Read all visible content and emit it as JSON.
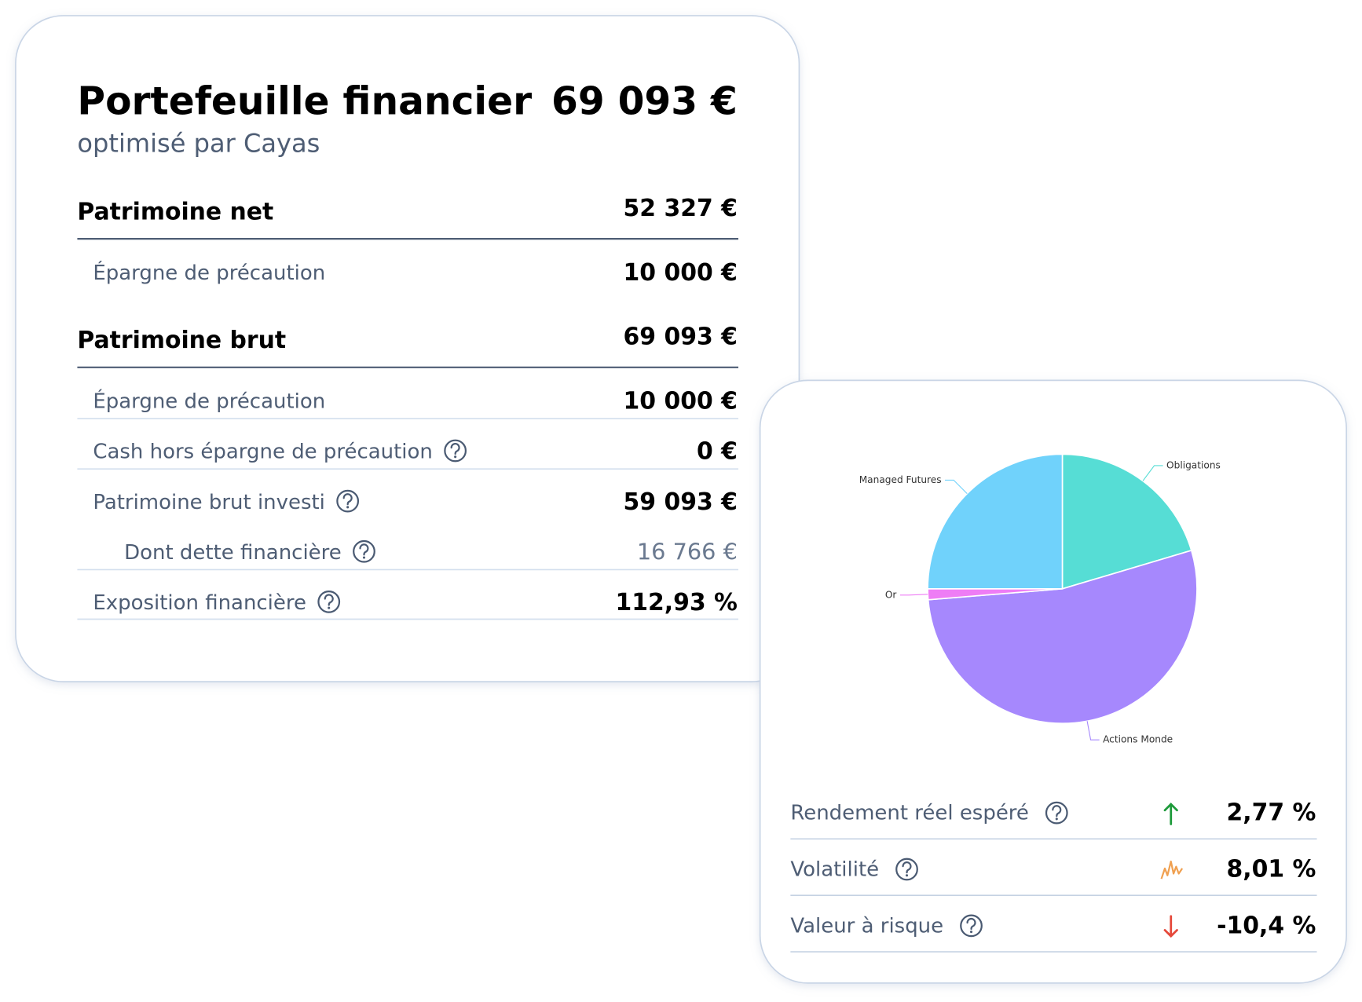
{
  "card": {
    "title": "Portefeuille financier",
    "subtitle": "optimisé par Cayas",
    "total": "69 093 €",
    "rows": [
      {
        "label": "Patrimoine net",
        "value": "52 327 €"
      },
      {
        "label": "Épargne de précaution",
        "value": "10 000 €"
      },
      {
        "label": "Patrimoine brut",
        "value": "69 093 €"
      },
      {
        "label": "Épargne de précaution",
        "value": "10 000 €"
      },
      {
        "label": "Cash hors épargne de précaution",
        "value": "0 €"
      },
      {
        "label": "Patrimoine brut investi",
        "value": "59 093 €"
      },
      {
        "label": "Dont dette financière",
        "value": "16 766 €"
      },
      {
        "label": "Exposition financière",
        "value": "112,93 %"
      }
    ]
  },
  "chart_data": {
    "type": "pie",
    "categories": [
      "Obligations",
      "Actions Monde",
      "Or",
      "Managed Futures"
    ],
    "values": [
      20.4,
      53.3,
      1.3,
      25.0
    ],
    "colors": [
      "#56ddd5",
      "#a688fd",
      "#ee7df5",
      "#70d2fb"
    ]
  },
  "metrics": [
    {
      "label": "Rendement réel espéré",
      "value": "2,77 %"
    },
    {
      "label": "Volatilité",
      "value": "8,01 %"
    },
    {
      "label": "Valeur à risque",
      "value": "-10,4 %"
    }
  ]
}
